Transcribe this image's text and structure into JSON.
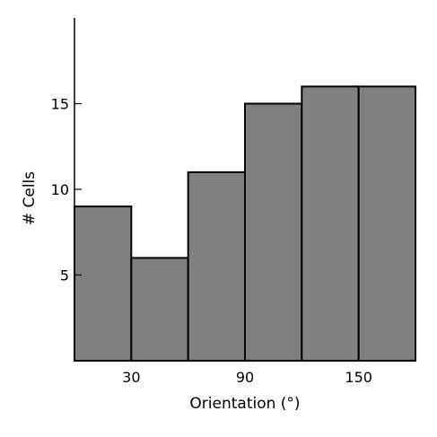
{
  "chart_data": {
    "type": "bar",
    "title": "",
    "xlabel": "Orientation (°)",
    "ylabel": "# Cells",
    "x_bin_edges": [
      0,
      30,
      60,
      90,
      120,
      150,
      180
    ],
    "x_ticks": [
      30,
      90,
      150
    ],
    "x_tick_labels": [
      "30",
      "90",
      "150"
    ],
    "xlim": [
      0,
      180
    ],
    "values": [
      9,
      6,
      11,
      15,
      16,
      16
    ],
    "y_ticks": [
      5,
      10,
      15
    ],
    "y_tick_labels": [
      "5",
      "10",
      "15"
    ],
    "ylim": [
      0,
      20
    ],
    "grid": false,
    "bar_color": "#808080",
    "edge_color": "#000000"
  }
}
